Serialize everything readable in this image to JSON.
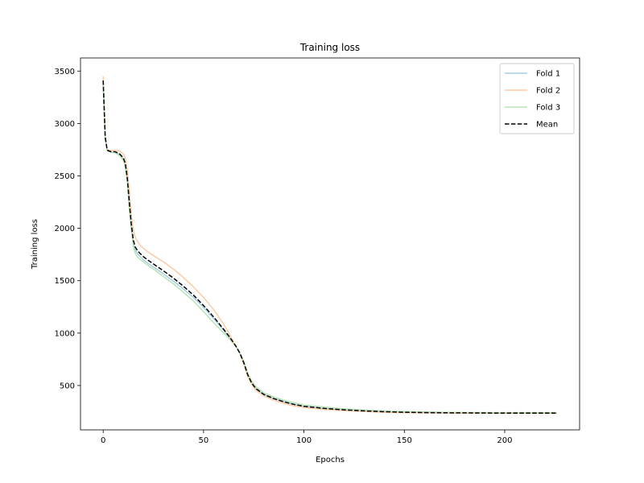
{
  "chart_data": {
    "type": "line",
    "title": "Training loss",
    "xlabel": "Epochs",
    "ylabel": "Training loss",
    "xlim": [
      -11.3,
      237.3
    ],
    "ylim": [
      77,
      3625
    ],
    "xticks": [
      0,
      50,
      100,
      150,
      200
    ],
    "yticks": [
      500,
      1000,
      1500,
      2000,
      2500,
      3000,
      3500
    ],
    "grid": false,
    "legend": "top-right",
    "series": [
      {
        "name": "Fold 1",
        "color": "#a6cee3",
        "style": "solid",
        "x": [
          0,
          1,
          2,
          4,
          6,
          8,
          10,
          11,
          12,
          13,
          14,
          15,
          16,
          17,
          18,
          20,
          22,
          25,
          30,
          35,
          40,
          45,
          50,
          55,
          60,
          63,
          66,
          68,
          70,
          72,
          74,
          76,
          80,
          85,
          90,
          95,
          100,
          110,
          120,
          130,
          140,
          150,
          160,
          170,
          180,
          190,
          200,
          210,
          220,
          226
        ],
        "y": [
          3380,
          2860,
          2740,
          2725,
          2725,
          2705,
          2660,
          2600,
          2450,
          2200,
          2000,
          1850,
          1790,
          1760,
          1740,
          1700,
          1670,
          1630,
          1565,
          1495,
          1420,
          1340,
          1245,
          1140,
          1025,
          955,
          880,
          815,
          720,
          600,
          520,
          470,
          415,
          375,
          345,
          320,
          300,
          280,
          265,
          255,
          247,
          243,
          240,
          238,
          237,
          236,
          235,
          235,
          235,
          235
        ]
      },
      {
        "name": "Fold 2",
        "color": "#fdcba5",
        "style": "solid",
        "x": [
          0,
          1,
          2,
          4,
          6,
          8,
          10,
          11,
          12,
          13,
          14,
          15,
          16,
          17,
          18,
          20,
          22,
          25,
          30,
          35,
          40,
          45,
          50,
          55,
          60,
          63,
          66,
          68,
          70,
          72,
          74,
          76,
          80,
          85,
          90,
          95,
          100,
          110,
          120,
          130,
          140,
          150,
          160,
          170,
          180,
          190,
          200,
          210,
          220,
          226
        ],
        "y": [
          3450,
          2880,
          2750,
          2740,
          2745,
          2740,
          2710,
          2670,
          2560,
          2360,
          2130,
          1980,
          1910,
          1880,
          1850,
          1810,
          1780,
          1740,
          1680,
          1610,
          1530,
          1440,
          1340,
          1225,
          1085,
          985,
          880,
          810,
          710,
          585,
          510,
          455,
          400,
          360,
          330,
          305,
          290,
          272,
          260,
          252,
          245,
          241,
          238,
          237,
          236,
          235,
          235,
          235,
          235,
          235
        ]
      },
      {
        "name": "Fold 3",
        "color": "#b8e2b6",
        "style": "solid",
        "x": [
          0,
          1,
          2,
          4,
          6,
          8,
          10,
          11,
          12,
          13,
          14,
          15,
          16,
          17,
          18,
          20,
          22,
          25,
          30,
          35,
          40,
          45,
          50,
          55,
          60,
          63,
          66,
          68,
          70,
          72,
          74,
          76,
          80,
          85,
          90,
          95,
          100,
          110,
          120,
          130,
          140,
          150,
          160,
          170,
          180,
          190,
          200,
          210,
          220,
          226
        ],
        "y": [
          3400,
          2870,
          2745,
          2725,
          2720,
          2695,
          2650,
          2590,
          2440,
          2190,
          1990,
          1830,
          1760,
          1730,
          1710,
          1680,
          1650,
          1610,
          1540,
          1470,
          1390,
          1305,
          1205,
          1100,
          1000,
          945,
          875,
          810,
          730,
          620,
          540,
          490,
          430,
          390,
          360,
          335,
          315,
          295,
          278,
          267,
          258,
          252,
          248,
          245,
          243,
          242,
          241,
          240,
          240,
          240
        ]
      },
      {
        "name": "Mean",
        "color": "#000000",
        "style": "dashed",
        "x": [
          0,
          1,
          2,
          4,
          6,
          8,
          10,
          11,
          12,
          13,
          14,
          15,
          16,
          17,
          18,
          20,
          22,
          25,
          30,
          35,
          40,
          45,
          50,
          55,
          60,
          63,
          66,
          68,
          70,
          72,
          74,
          76,
          80,
          85,
          90,
          95,
          100,
          110,
          120,
          130,
          140,
          150,
          160,
          170,
          180,
          190,
          200,
          210,
          220,
          226
        ],
        "y": [
          3410,
          2870,
          2745,
          2730,
          2730,
          2713,
          2673,
          2620,
          2483,
          2250,
          2040,
          1887,
          1820,
          1790,
          1767,
          1730,
          1700,
          1660,
          1595,
          1525,
          1447,
          1362,
          1263,
          1155,
          1037,
          962,
          878,
          812,
          720,
          602,
          523,
          472,
          415,
          375,
          345,
          320,
          302,
          282,
          268,
          258,
          250,
          245,
          242,
          240,
          239,
          238,
          237,
          237,
          237,
          237
        ]
      }
    ]
  }
}
